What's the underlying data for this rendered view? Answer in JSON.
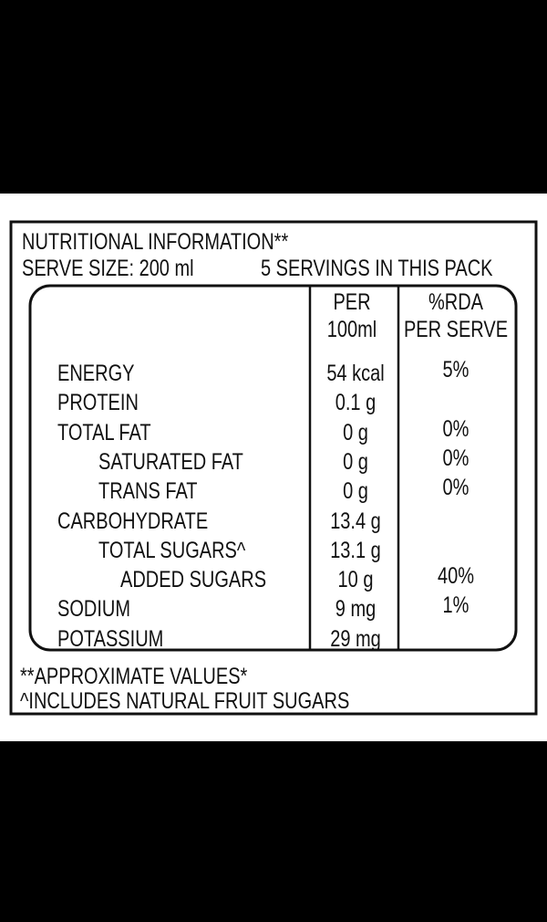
{
  "header": {
    "title": "NUTRITIONAL INFORMATION**",
    "serve_size": "SERVE SIZE: 200 ml",
    "servings": "5 SERVINGS IN THIS PACK"
  },
  "table": {
    "columns": [
      [
        "PER",
        "100ml"
      ],
      [
        "%RDA",
        "PER SERVE"
      ]
    ],
    "rows": [
      {
        "name": "ENERGY",
        "per_100ml": "54 kcal",
        "rda": "5%"
      },
      {
        "name": "PROTEIN",
        "per_100ml": "0.1 g"
      },
      {
        "name": "TOTAL FAT",
        "per_100ml": "0 g",
        "rda": "0%"
      },
      {
        "name": "SATURATED FAT",
        "per_100ml": "0 g",
        "rda": "0%"
      },
      {
        "name": "TRANS FAT",
        "per_100ml": "0 g",
        "rda": "0%"
      },
      {
        "name": "CARBOHYDRATE",
        "per_100ml": "13.4 g"
      },
      {
        "name": "TOTAL SUGARS^",
        "per_100ml": "13.1 g"
      },
      {
        "name": "ADDED SUGARS",
        "per_100ml": "10 g",
        "rda": "40%"
      },
      {
        "name": "SODIUM",
        "per_100ml": "9 mg",
        "rda": "1%"
      },
      {
        "name": "POTASSIUM",
        "per_100ml": "29 mg"
      }
    ]
  },
  "footnotes": [
    "**APPROXIMATE VALUES*",
    "^INCLUDES NATURAL FRUIT SUGARS"
  ]
}
